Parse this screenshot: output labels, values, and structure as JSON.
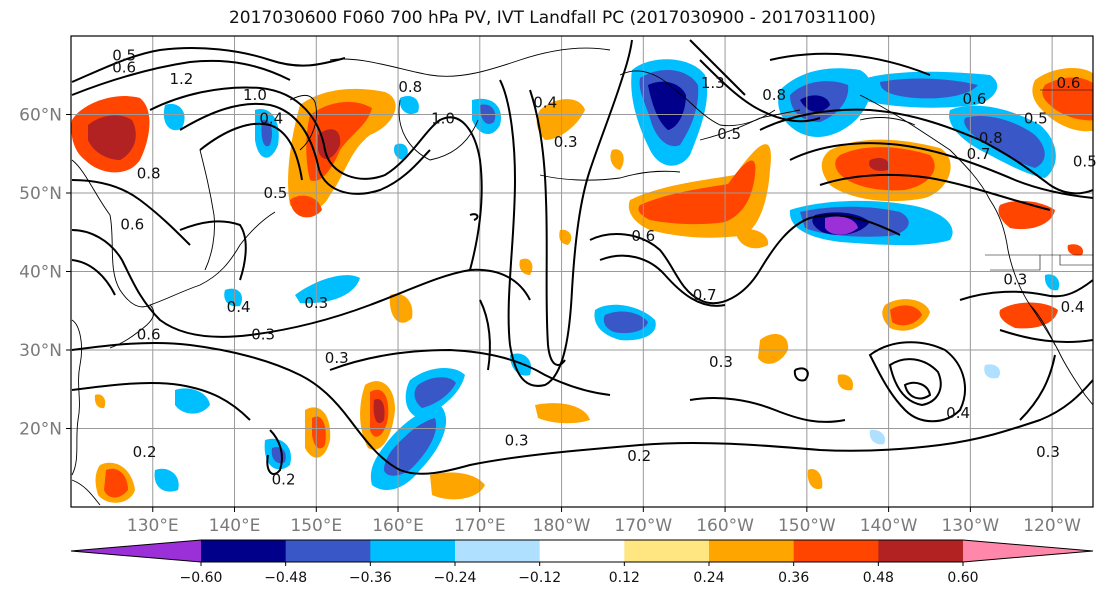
{
  "title": "2017030600 F060 700 hPa PV, IVT Landfall PC (2017030900 - 2017031100)",
  "map": {
    "lon_range": [
      120,
      245
    ],
    "lat_range": [
      10,
      70
    ],
    "lat_ticks": [
      {
        "lat": 60,
        "label": "60°N"
      },
      {
        "lat": 50,
        "label": "50°N"
      },
      {
        "lat": 40,
        "label": "40°N"
      },
      {
        "lat": 30,
        "label": "30°N"
      },
      {
        "lat": 20,
        "label": "20°N"
      }
    ],
    "lon_ticks": [
      {
        "lon": 130,
        "label": "130°E"
      },
      {
        "lon": 140,
        "label": "140°E"
      },
      {
        "lon": 150,
        "label": "150°E"
      },
      {
        "lon": 160,
        "label": "160°E"
      },
      {
        "lon": 170,
        "label": "170°E"
      },
      {
        "lon": 180,
        "label": "180°W"
      },
      {
        "lon": 190,
        "label": "170°W"
      },
      {
        "lon": 200,
        "label": "160°W"
      },
      {
        "lon": 210,
        "label": "150°W"
      },
      {
        "lon": 220,
        "label": "140°W"
      },
      {
        "lon": 230,
        "label": "130°W"
      },
      {
        "lon": 240,
        "label": "120°W"
      }
    ],
    "contour_labels": [
      {
        "text": "0.5",
        "lon": 126.5,
        "lat": 67.5
      },
      {
        "text": "0.6",
        "lon": 126.5,
        "lat": 66
      },
      {
        "text": "1.2",
        "lon": 133.5,
        "lat": 64.5
      },
      {
        "text": "1.0",
        "lon": 142.5,
        "lat": 62.5
      },
      {
        "text": "0.4",
        "lon": 144.5,
        "lat": 59.5
      },
      {
        "text": "0.8",
        "lon": 129.5,
        "lat": 52.5
      },
      {
        "text": "0.5",
        "lon": 145,
        "lat": 50
      },
      {
        "text": "0.6",
        "lon": 127.5,
        "lat": 46
      },
      {
        "text": "0.8",
        "lon": 161.5,
        "lat": 63.5
      },
      {
        "text": "1.0",
        "lon": 165.5,
        "lat": 59.5
      },
      {
        "text": "0.4",
        "lon": 178,
        "lat": 61.5
      },
      {
        "text": "0.3",
        "lon": 180.5,
        "lat": 56.5
      },
      {
        "text": "0.6",
        "lon": 190,
        "lat": 44.5
      },
      {
        "text": "0.7",
        "lon": 197.5,
        "lat": 37
      },
      {
        "text": "0.3",
        "lon": 150,
        "lat": 36
      },
      {
        "text": "0.4",
        "lon": 140.5,
        "lat": 35.5
      },
      {
        "text": "0.3",
        "lon": 143.5,
        "lat": 32
      },
      {
        "text": "0.6",
        "lon": 129.5,
        "lat": 32
      },
      {
        "text": "0.3",
        "lon": 152.5,
        "lat": 29
      },
      {
        "text": "0.3",
        "lon": 199.5,
        "lat": 28.5
      },
      {
        "text": "0.4",
        "lon": 228.5,
        "lat": 22
      },
      {
        "text": "0.3",
        "lon": 239.5,
        "lat": 17
      },
      {
        "text": "0.3",
        "lon": 174.5,
        "lat": 18.5
      },
      {
        "text": "0.2",
        "lon": 129,
        "lat": 17
      },
      {
        "text": "0.2",
        "lon": 146,
        "lat": 13.5
      },
      {
        "text": "0.2",
        "lon": 189.5,
        "lat": 16.5
      },
      {
        "text": "1.3",
        "lon": 198.5,
        "lat": 64
      },
      {
        "text": "0.5",
        "lon": 200.5,
        "lat": 57.5
      },
      {
        "text": "0.8",
        "lon": 206,
        "lat": 62.5
      },
      {
        "text": "0.6",
        "lon": 230.5,
        "lat": 62
      },
      {
        "text": "0.5",
        "lon": 238,
        "lat": 59.5
      },
      {
        "text": "0.8",
        "lon": 232.5,
        "lat": 57
      },
      {
        "text": "0.7",
        "lon": 231,
        "lat": 55
      },
      {
        "text": "0.6",
        "lon": 242,
        "lat": 64
      },
      {
        "text": "0.5",
        "lon": 244,
        "lat": 54
      },
      {
        "text": "0.3",
        "lon": 235.5,
        "lat": 39
      },
      {
        "text": "0.4",
        "lon": 242.5,
        "lat": 35.5
      }
    ]
  },
  "colorbar": {
    "colors": [
      "#9b30d9",
      "#00008b",
      "#3a57c8",
      "#00bfff",
      "#b0e0ff",
      "#ffffff",
      "#ffe680",
      "#ffa500",
      "#ff4500",
      "#b22222",
      "#ff88aa"
    ],
    "tick_labels": [
      "−0.60",
      "−0.48",
      "−0.36",
      "−0.24",
      "−0.12",
      "0.12",
      "0.24",
      "0.36",
      "0.48",
      "0.60"
    ]
  }
}
